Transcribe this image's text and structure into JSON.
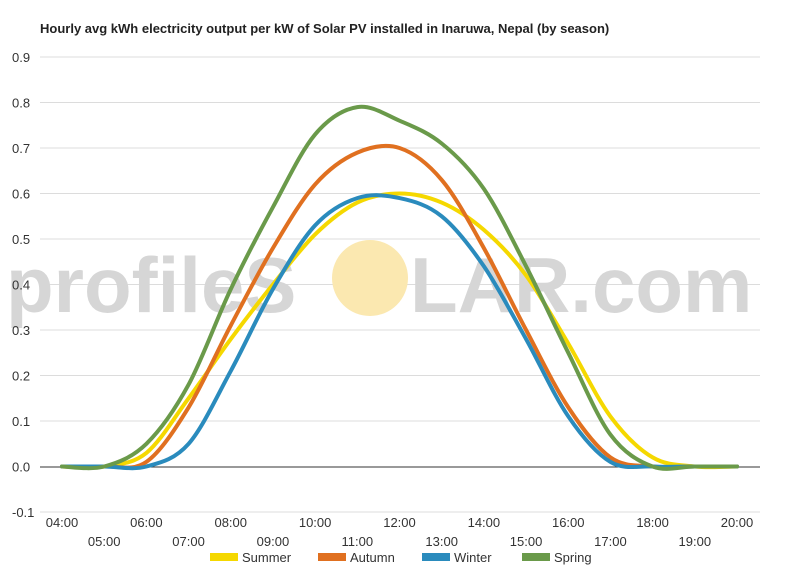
{
  "chart_data": {
    "type": "line",
    "title": "Hourly avg kWh electricity output per kW of Solar PV installed in Inaruwa, Nepal (by season)",
    "xlabel": "",
    "ylabel": "",
    "ylim": [
      -0.1,
      0.9
    ],
    "yticks": [
      "-0.1",
      "0.0",
      "0.1",
      "0.2",
      "0.3",
      "0.4",
      "0.5",
      "0.6",
      "0.7",
      "0.8",
      "0.9"
    ],
    "x": [
      "04:00",
      "05:00",
      "06:00",
      "07:00",
      "08:00",
      "09:00",
      "10:00",
      "11:00",
      "12:00",
      "13:00",
      "14:00",
      "15:00",
      "16:00",
      "17:00",
      "18:00",
      "19:00",
      "20:00"
    ],
    "grid": true,
    "legend_position": "bottom",
    "series": [
      {
        "name": "Summer",
        "color": "#f5d800",
        "values": [
          0.0,
          0.0,
          0.03,
          0.15,
          0.28,
          0.4,
          0.51,
          0.58,
          0.6,
          0.58,
          0.52,
          0.42,
          0.27,
          0.11,
          0.02,
          0.0,
          0.0
        ]
      },
      {
        "name": "Autumn",
        "color": "#e07020",
        "values": [
          0.0,
          0.0,
          0.01,
          0.13,
          0.31,
          0.48,
          0.62,
          0.69,
          0.7,
          0.63,
          0.48,
          0.3,
          0.13,
          0.02,
          0.0,
          0.0,
          0.0
        ]
      },
      {
        "name": "Winter",
        "color": "#2a8bbd",
        "values": [
          0.0,
          0.0,
          0.0,
          0.05,
          0.21,
          0.39,
          0.53,
          0.59,
          0.59,
          0.55,
          0.44,
          0.28,
          0.11,
          0.01,
          0.0,
          0.0,
          0.0
        ]
      },
      {
        "name": "Spring",
        "color": "#6a9a4a",
        "values": [
          0.0,
          0.0,
          0.05,
          0.18,
          0.39,
          0.57,
          0.73,
          0.79,
          0.76,
          0.71,
          0.61,
          0.44,
          0.25,
          0.07,
          0.0,
          0.0,
          0.0
        ]
      }
    ]
  },
  "watermark": {
    "text_left": "profileS",
    "text_right": "LAR.com",
    "sun_color": "#fbe8b0"
  }
}
